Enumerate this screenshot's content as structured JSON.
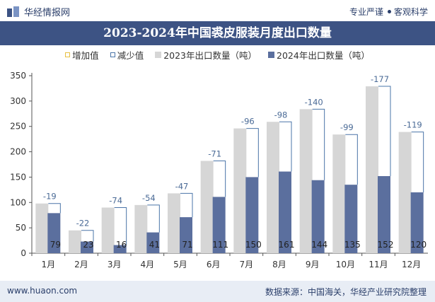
{
  "header": {
    "brand": "华经情报网",
    "tag_left": "专业严谨",
    "tag_right": "客观科学"
  },
  "footer": {
    "website": "www.huaon.com",
    "source": "数据来源：中国海关，华经产业研究院整理"
  },
  "colors": {
    "bar_2023": "#d6d6d6",
    "bar_2024": "#5b6f9e",
    "decrease_bracket": "#4a74a8",
    "increase_marker": "#e8c040",
    "title_bg": "#3d5384"
  },
  "chart_data": {
    "type": "bar",
    "title": "2023-2024年中国裘皮服装月度出口数量",
    "legend": [
      "增加值",
      "减少值",
      "2023年出口数量（吨）",
      "2024年出口数量（吨）"
    ],
    "legend_position": "top-center",
    "categories": [
      "1月",
      "2月",
      "3月",
      "4月",
      "5月",
      "6月",
      "7月",
      "8月",
      "9月",
      "10月",
      "11月",
      "12月"
    ],
    "series": [
      {
        "name": "2023年出口数量（吨）",
        "values": [
          98,
          45,
          90,
          95,
          118,
          182,
          246,
          259,
          284,
          234,
          329,
          239
        ]
      },
      {
        "name": "2024年出口数量（吨）",
        "values": [
          79,
          23,
          16,
          41,
          71,
          111,
          150,
          161,
          144,
          135,
          152,
          120
        ]
      }
    ],
    "change_labels": [
      "-19",
      "-22",
      "-74",
      "-54",
      "-47",
      "-71",
      "-96",
      "-98",
      "-140",
      "-99",
      "-177",
      "-119"
    ],
    "ylim": [
      0,
      350
    ],
    "yticks": [
      0,
      50,
      100,
      150,
      200,
      250,
      300,
      350
    ],
    "grid": false
  }
}
